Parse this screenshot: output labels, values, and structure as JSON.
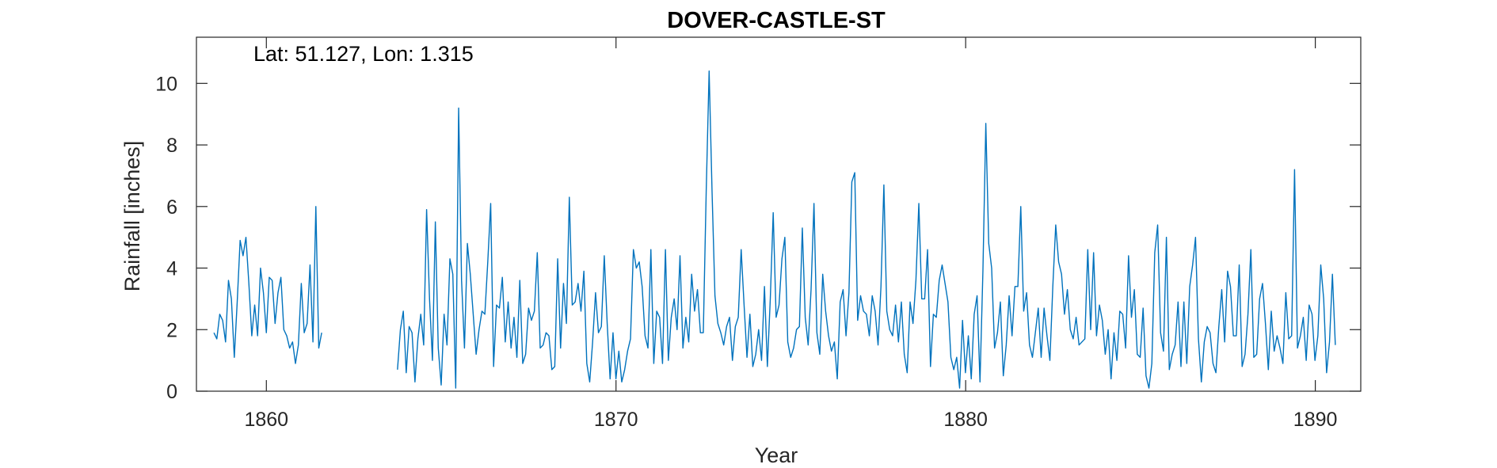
{
  "chart_data": {
    "type": "line",
    "title": "DOVER-CASTLE-ST",
    "annotation": "Lat: 51.127, Lon: 1.315",
    "xlabel": "Year",
    "ylabel": "Rainfall [inches]",
    "xlim": [
      1858,
      1891.3
    ],
    "ylim": [
      0,
      11.5
    ],
    "xticks": [
      1860,
      1870,
      1880,
      1890
    ],
    "yticks": [
      0,
      2,
      4,
      6,
      8,
      10
    ],
    "grid": false,
    "box": true,
    "series": [
      {
        "color": "#0072BD",
        "segments": [
          {
            "x_start": 1858.5,
            "step": 0.0833,
            "values": [
              1.9,
              1.7,
              2.5,
              2.3,
              1.6,
              3.6,
              3.0,
              1.1,
              2.9,
              4.9,
              4.4,
              5.0,
              3.5,
              1.8,
              2.8,
              1.8,
              4.0,
              3.2,
              1.9,
              3.7,
              3.6,
              2.2,
              3.2,
              3.7,
              2.0,
              1.8,
              1.4,
              1.6,
              0.9,
              1.5,
              3.5,
              1.9,
              2.2,
              4.1,
              1.6,
              6.0,
              1.4,
              1.9
            ]
          },
          {
            "x_start": 1863.75,
            "step": 0.0833,
            "values": [
              0.7,
              2.0,
              2.6,
              0.6,
              2.1,
              1.9,
              0.3,
              1.7,
              2.5,
              1.5,
              5.9,
              3.0,
              1.0,
              5.5,
              1.4,
              0.2,
              2.5,
              1.5,
              4.3,
              3.8,
              0.1,
              9.2,
              3.6,
              1.4,
              4.8,
              3.8,
              2.5,
              1.2,
              2.0,
              2.6,
              2.5,
              4.2,
              6.1,
              0.8,
              2.8,
              2.7,
              3.7,
              1.6,
              2.9,
              1.4,
              2.4,
              1.1,
              3.6,
              0.9,
              1.2,
              2.7,
              2.3,
              2.6,
              4.5,
              1.4,
              1.5,
              1.9,
              1.8,
              0.7,
              0.8,
              4.3,
              1.4,
              3.5,
              2.2,
              6.3,
              2.8,
              2.9,
              3.5,
              2.6,
              3.9,
              0.9,
              0.3,
              1.6,
              3.2,
              1.9,
              2.1,
              4.4,
              2.2,
              0.4,
              1.9,
              0.4,
              1.3,
              0.3,
              0.7,
              1.3,
              1.7,
              4.6,
              4.0,
              4.2,
              3.4,
              1.8,
              1.4,
              4.6,
              0.9,
              2.6,
              2.4,
              0.9,
              4.6,
              1.0,
              2.4,
              3.0,
              2.0,
              4.4,
              1.4,
              2.4,
              1.6,
              3.8,
              2.6,
              3.3,
              1.9,
              1.9,
              6.5,
              10.4,
              6.5,
              3.1,
              2.2,
              1.9,
              1.5,
              2.1,
              2.4,
              1.0,
              2.1,
              2.4,
              4.6,
              2.8,
              1.1,
              2.5,
              0.8,
              1.2,
              2.0,
              1.0,
              3.4,
              0.8,
              3.0,
              5.8,
              2.4,
              2.8,
              4.3,
              5.0,
              1.6,
              1.1,
              1.4,
              2.0,
              2.1,
              5.3,
              2.4,
              1.5,
              3.3,
              6.1,
              1.9,
              1.2,
              3.8,
              2.6,
              1.8,
              1.3,
              1.6,
              0.4,
              2.9,
              3.3,
              1.8,
              3.2,
              6.8,
              7.1,
              2.3,
              3.1,
              2.6,
              2.5,
              1.8,
              3.1,
              2.6,
              1.5,
              3.4,
              6.7,
              2.6,
              2.0,
              1.8,
              2.8,
              1.6,
              2.9,
              1.2,
              0.6,
              2.9,
              2.2,
              3.6,
              6.1,
              3.0,
              3.0,
              4.6,
              0.8,
              2.5,
              2.4,
              3.6,
              4.1,
              3.5,
              2.9,
              1.1,
              0.7,
              1.1,
              0.1,
              2.3,
              0.6,
              1.8,
              0.4,
              2.5,
              3.1,
              0.3,
              3.9,
              8.7,
              4.8,
              4.0,
              1.4,
              1.9,
              2.9,
              0.5,
              1.5,
              3.1,
              1.8,
              3.4,
              3.4,
              6.0,
              2.6,
              3.2,
              1.5,
              1.1,
              1.9,
              2.7,
              1.1,
              2.7,
              1.8,
              1.0,
              3.4,
              5.4,
              4.2,
              3.8,
              2.5,
              3.3,
              2.0,
              1.7,
              2.4,
              1.5,
              1.6,
              1.7,
              4.6,
              2.0,
              4.5,
              1.8,
              2.8,
              2.3,
              1.2,
              2.0,
              0.4,
              1.9,
              1.0,
              2.6,
              2.5,
              1.4,
              4.4,
              2.4,
              3.3,
              1.2,
              1.1,
              2.7,
              0.5,
              0.1,
              0.9,
              4.5,
              5.4,
              1.9,
              1.3,
              5.0,
              0.7,
              1.2,
              1.5,
              2.9,
              0.8,
              2.9,
              0.9,
              3.4,
              4.1,
              5.0,
              1.7,
              0.3,
              1.6,
              2.1,
              1.9,
              0.9,
              0.6,
              2.1,
              3.3,
              1.6,
              3.9,
              3.4,
              1.8,
              1.8,
              4.1,
              0.8,
              1.2,
              2.5,
              4.6,
              1.1,
              1.2,
              3.0,
              3.5,
              2.2,
              0.7,
              2.6,
              1.3,
              1.8,
              1.4,
              0.9,
              3.2,
              1.7,
              1.8,
              7.2,
              1.4,
              1.8,
              2.4,
              1.0,
              2.8,
              2.5,
              1.0,
              1.8,
              4.1,
              3.0,
              0.6,
              1.6,
              3.8,
              1.5
            ]
          }
        ]
      }
    ]
  }
}
